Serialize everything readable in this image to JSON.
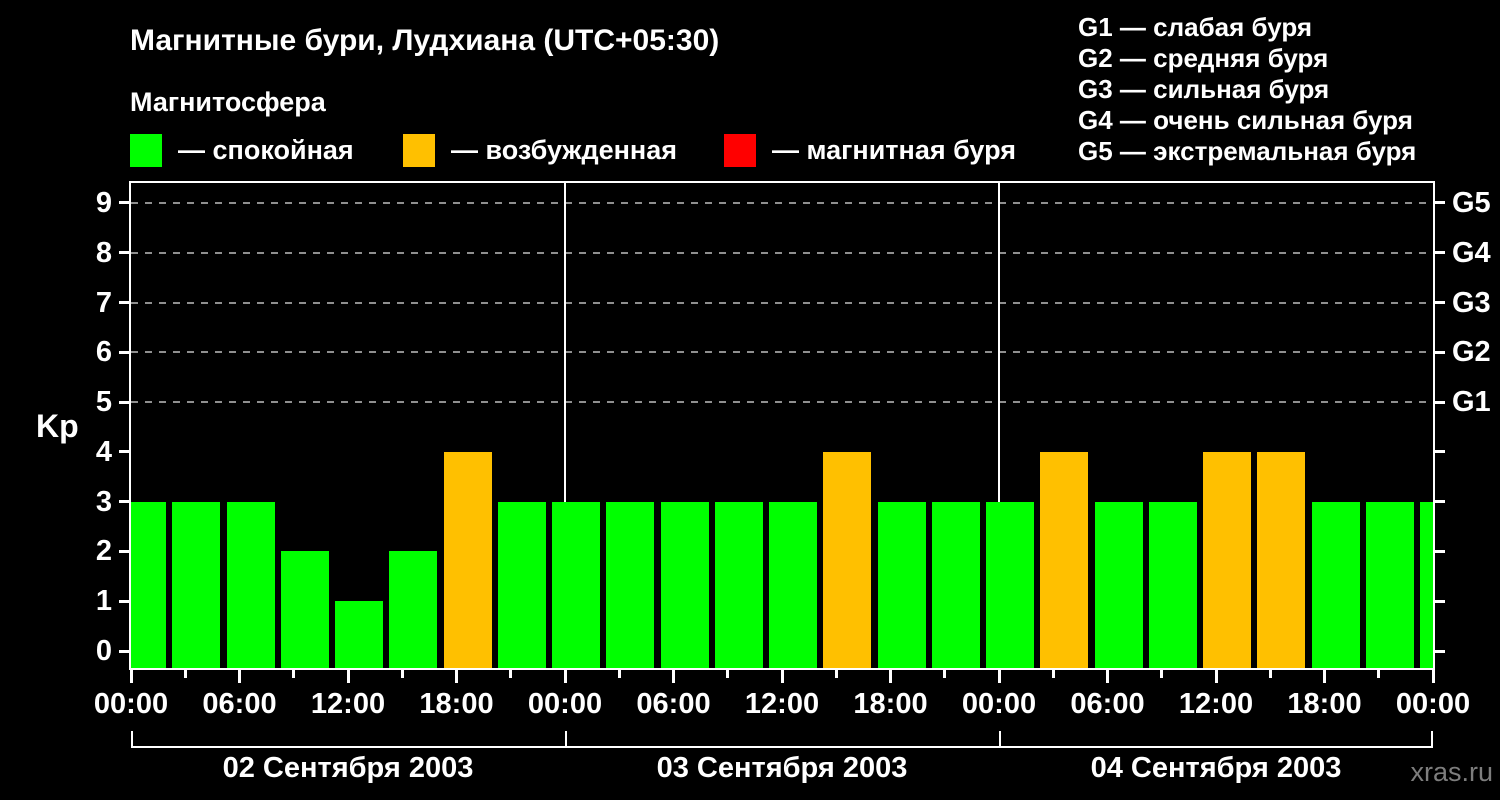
{
  "header": {
    "title": "Магнитные бури, Лудхиана (UTC+05:30)",
    "subtitle": "Магнитосфера",
    "legend": [
      {
        "label": "— спокойная",
        "color": "#00ff00"
      },
      {
        "label": "— возбужденная",
        "color": "#ffc000"
      },
      {
        "label": "— магнитная буря",
        "color": "#ff0000"
      }
    ],
    "g_scale_legend": [
      "G1 — слабая буря",
      "G2 — средняя буря",
      "G3 — сильная буря",
      "G4 — очень сильная буря",
      "G5 — экстремальная буря"
    ]
  },
  "watermark": "xras.ru",
  "chart_data": {
    "type": "bar",
    "title": "Магнитные бури, Лудхиана (UTC+05:30)",
    "ylabel": "Kp",
    "ylim": [
      0,
      9
    ],
    "y_ticks": [
      0,
      1,
      2,
      3,
      4,
      5,
      6,
      7,
      8,
      9
    ],
    "grid_levels": [
      5,
      6,
      7,
      8,
      9
    ],
    "grid_style": "dashed",
    "right_axis": [
      {
        "kp": 5,
        "label": "G1"
      },
      {
        "kp": 6,
        "label": "G2"
      },
      {
        "kp": 7,
        "label": "G3"
      },
      {
        "kp": 8,
        "label": "G4"
      },
      {
        "kp": 9,
        "label": "G5"
      }
    ],
    "interval_hours": 3,
    "x_tick_labels": [
      "00:00",
      "06:00",
      "12:00",
      "18:00",
      "00:00",
      "06:00",
      "12:00",
      "18:00",
      "00:00",
      "06:00",
      "12:00",
      "18:00",
      "00:00"
    ],
    "days": [
      {
        "date": "02 Сентября 2003",
        "kp_values": [
          3,
          3,
          3,
          2,
          1,
          2,
          4,
          3
        ]
      },
      {
        "date": "03 Сентября 2003",
        "kp_values": [
          3,
          3,
          3,
          3,
          3,
          4,
          3,
          3
        ]
      },
      {
        "date": "04 Сентября 2003",
        "kp_values": [
          3,
          4,
          3,
          3,
          4,
          4,
          3,
          3
        ]
      }
    ],
    "next_day_partial_kp": 3,
    "bar_colors": {
      "quiet": "#00ff00",
      "excited": "#ffc000",
      "storm": "#ff0000"
    },
    "color_rule": {
      "quiet_max_kp": 3,
      "excited_max_kp": 4
    },
    "axis_color": "#ffffff",
    "grid_color": "#8f8f8f",
    "background": "#000000"
  }
}
